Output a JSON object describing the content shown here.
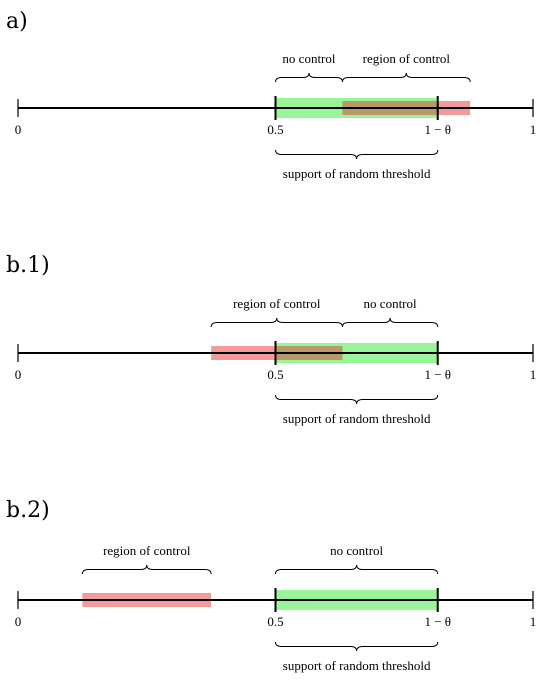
{
  "colors": {
    "support": "#98f598",
    "control": "#f29b9b",
    "overlap": "#b89a66",
    "axis": "#000000"
  },
  "panels": [
    {
      "label": "a)",
      "ticks": {
        "zero": "0",
        "half": "0.5",
        "one_minus_theta": "1 − θ",
        "one": "1"
      },
      "support_label": "support of random threshold",
      "support": [
        0.5,
        0.815
      ],
      "control": [
        0.63,
        0.878
      ],
      "braces_above": [
        {
          "text": "no control",
          "from": 0.5,
          "to": 0.63
        },
        {
          "text": "region of control",
          "from": 0.63,
          "to": 0.878
        }
      ]
    },
    {
      "label": "b.1)",
      "ticks": {
        "zero": "0",
        "half": "0.5",
        "one_minus_theta": "1 − θ",
        "one": "1"
      },
      "support_label": "support of random threshold",
      "support": [
        0.5,
        0.815
      ],
      "control": [
        0.375,
        0.63
      ],
      "braces_above": [
        {
          "text": "region of control",
          "from": 0.375,
          "to": 0.63
        },
        {
          "text": "no control",
          "from": 0.63,
          "to": 0.815
        }
      ]
    },
    {
      "label": "b.2)",
      "ticks": {
        "zero": "0",
        "half": "0.5",
        "one_minus_theta": "1 − θ",
        "one": "1"
      },
      "support_label": "support of random threshold",
      "support": [
        0.5,
        0.815
      ],
      "control": [
        0.125,
        0.375
      ],
      "braces_above": [
        {
          "text": "region of control",
          "from": 0.125,
          "to": 0.375
        },
        {
          "text": "no control",
          "from": 0.5,
          "to": 0.815
        }
      ]
    }
  ]
}
